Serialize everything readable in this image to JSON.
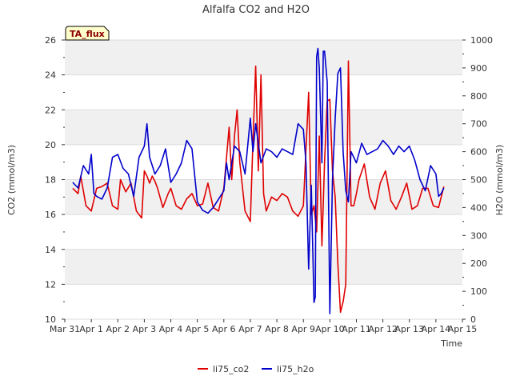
{
  "chart_data": {
    "type": "line",
    "title": "Alfalfa CO2 and H2O",
    "xlabel": "Time",
    "ylabel": "CO2 (mmol/m3)",
    "y2label": "H2O (mmol/m3)",
    "ylim": [
      10,
      26
    ],
    "y2lim": [
      0,
      1000
    ],
    "xlim": [
      0,
      15
    ],
    "x_ticks": [
      0,
      1,
      2,
      3,
      4,
      5,
      6,
      7,
      8,
      9,
      10,
      11,
      12,
      13,
      14,
      15
    ],
    "x_tick_labels": [
      "Mar 31",
      "Apr 1",
      "Apr 2",
      "Apr 3",
      "Apr 4",
      "Apr 5",
      "Apr 6",
      "Apr 7",
      "Apr 8",
      "Apr 9",
      "Apr 10",
      "Apr 11",
      "Apr 12",
      "Apr 13",
      "Apr 14",
      "Apr 15"
    ],
    "y_ticks": [
      10,
      12,
      14,
      16,
      18,
      20,
      22,
      24,
      26
    ],
    "y2_ticks": [
      0,
      100,
      200,
      300,
      400,
      500,
      600,
      700,
      800,
      900,
      1000
    ],
    "annotation": "TA_flux",
    "grid": true,
    "legend_position": "bottom-center",
    "series": [
      {
        "name": "li75_co2",
        "axis": "left",
        "color": "#e00000",
        "x": [
          0.3,
          0.5,
          0.6,
          0.8,
          1.0,
          1.2,
          1.4,
          1.6,
          1.8,
          2.0,
          2.1,
          2.3,
          2.5,
          2.7,
          2.9,
          3.0,
          3.1,
          3.2,
          3.3,
          3.4,
          3.5,
          3.7,
          3.9,
          4.0,
          4.2,
          4.4,
          4.6,
          4.8,
          5.0,
          5.2,
          5.4,
          5.6,
          5.8,
          6.0,
          6.2,
          6.3,
          6.4,
          6.5,
          6.6,
          6.8,
          7.0,
          7.1,
          7.2,
          7.3,
          7.4,
          7.5,
          7.6,
          7.8,
          8.0,
          8.2,
          8.4,
          8.6,
          8.8,
          9.0,
          9.2,
          9.3,
          9.4,
          9.5,
          9.6,
          9.7,
          9.8,
          9.9,
          10.0,
          10.1,
          10.2,
          10.3,
          10.4,
          10.5,
          10.6,
          10.7,
          10.8,
          10.9,
          11.0,
          11.1,
          11.3,
          11.5,
          11.7,
          11.9,
          12.1,
          12.3,
          12.5,
          12.7,
          12.9,
          13.1,
          13.3,
          13.5,
          13.7,
          13.9,
          14.1,
          14.3
        ],
        "values": [
          17.5,
          17.2,
          18.2,
          16.5,
          16.2,
          17.5,
          17.6,
          17.8,
          16.5,
          16.3,
          18.0,
          17.3,
          17.8,
          16.2,
          15.8,
          18.5,
          18.2,
          17.8,
          18.2,
          17.9,
          17.5,
          16.4,
          17.2,
          17.5,
          16.5,
          16.3,
          16.9,
          17.2,
          16.5,
          16.6,
          17.8,
          16.4,
          16.2,
          17.5,
          21.0,
          18.0,
          20.5,
          22.0,
          19.0,
          16.2,
          15.6,
          20.2,
          24.5,
          18.5,
          24.0,
          17.2,
          16.2,
          17.0,
          16.8,
          17.2,
          17.0,
          16.2,
          15.9,
          16.5,
          23.0,
          16.0,
          16.5,
          15.0,
          20.5,
          14.2,
          19.0,
          22.5,
          22.6,
          18.5,
          17.0,
          13.2,
          10.4,
          11.0,
          12.0,
          24.8,
          16.5,
          16.5,
          17.2,
          18.0,
          18.9,
          17.0,
          16.3,
          17.8,
          18.5,
          16.8,
          16.3,
          17.0,
          17.8,
          16.3,
          16.5,
          17.5,
          17.5,
          16.5,
          16.4,
          17.6
        ]
      },
      {
        "name": "li75_h2o",
        "axis": "right",
        "color": "#0000cc",
        "x": [
          0.3,
          0.5,
          0.7,
          0.9,
          1.0,
          1.1,
          1.2,
          1.4,
          1.6,
          1.8,
          2.0,
          2.2,
          2.4,
          2.6,
          2.8,
          3.0,
          3.1,
          3.2,
          3.4,
          3.6,
          3.8,
          4.0,
          4.2,
          4.4,
          4.6,
          4.8,
          5.0,
          5.2,
          5.4,
          5.6,
          5.8,
          6.0,
          6.1,
          6.2,
          6.4,
          6.6,
          6.8,
          7.0,
          7.1,
          7.2,
          7.4,
          7.6,
          7.8,
          8.0,
          8.2,
          8.4,
          8.6,
          8.8,
          9.0,
          9.1,
          9.2,
          9.3,
          9.4,
          9.45,
          9.5,
          9.55,
          9.6,
          9.7,
          9.75,
          9.8,
          9.9,
          10.0,
          10.1,
          10.2,
          10.3,
          10.4,
          10.5,
          10.6,
          10.7,
          10.8,
          10.9,
          11.0,
          11.2,
          11.4,
          11.6,
          11.8,
          12.0,
          12.2,
          12.4,
          12.6,
          12.8,
          13.0,
          13.2,
          13.4,
          13.6,
          13.8,
          14.0,
          14.1,
          14.2,
          14.3
        ],
        "values": [
          490,
          470,
          550,
          520,
          590,
          450,
          440,
          430,
          470,
          580,
          590,
          540,
          520,
          440,
          580,
          620,
          700,
          580,
          520,
          550,
          610,
          490,
          520,
          560,
          640,
          610,
          420,
          390,
          380,
          400,
          430,
          460,
          560,
          500,
          620,
          600,
          520,
          720,
          600,
          700,
          560,
          610,
          600,
          580,
          610,
          600,
          590,
          700,
          680,
          560,
          180,
          480,
          60,
          80,
          940,
          970,
          900,
          560,
          960,
          960,
          850,
          20,
          500,
          720,
          880,
          900,
          600,
          460,
          420,
          600,
          580,
          560,
          630,
          590,
          600,
          610,
          640,
          620,
          590,
          620,
          600,
          620,
          570,
          500,
          460,
          550,
          520,
          440,
          450,
          470
        ]
      }
    ]
  }
}
